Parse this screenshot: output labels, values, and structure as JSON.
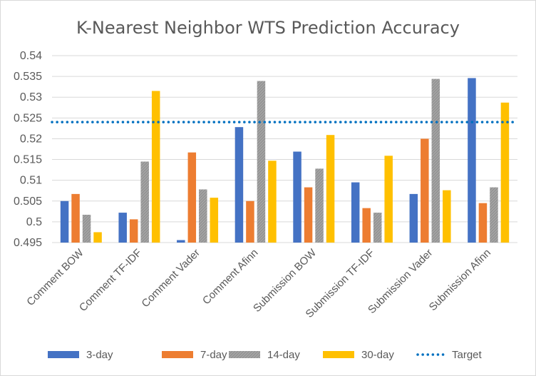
{
  "chart_data": {
    "type": "bar",
    "title": "K-Nearest Neighbor WTS Prediction Accuracy",
    "categories": [
      "Comment BOW",
      "Comment TF-IDF",
      "Comment Vader",
      "Comment Afinn",
      "Submission BOW",
      "Submission TF-IDF",
      "Submission Vader",
      "Submission Afinn"
    ],
    "series": [
      {
        "name": "3-day",
        "color": "#4472C4",
        "pattern": "solid",
        "values": [
          0.505,
          0.5022,
          0.4956,
          0.5228,
          0.5169,
          0.5095,
          0.5067,
          0.5346
        ]
      },
      {
        "name": "7-day",
        "color": "#ED7D31",
        "pattern": "solid",
        "values": [
          0.5067,
          0.5006,
          0.5167,
          0.505,
          0.5083,
          0.5033,
          0.52,
          0.5045
        ]
      },
      {
        "name": "14-day",
        "color": "#A5A5A5",
        "pattern": "hatched",
        "values": [
          0.5017,
          0.5145,
          0.5078,
          0.5339,
          0.5128,
          0.5022,
          0.5344,
          0.5083
        ]
      },
      {
        "name": "30-day",
        "color": "#FFC000",
        "pattern": "solid",
        "values": [
          0.4975,
          0.5315,
          0.5058,
          0.5147,
          0.5209,
          0.5159,
          0.5076,
          0.5287
        ]
      }
    ],
    "target": {
      "name": "Target",
      "value": 0.524,
      "color": "#0070C0",
      "style": "dotted"
    },
    "ylim": [
      0.495,
      0.54
    ],
    "yticks": [
      "0.495",
      "0.5",
      "0.505",
      "0.51",
      "0.515",
      "0.52",
      "0.525",
      "0.53",
      "0.535",
      "0.54"
    ],
    "grid": true,
    "legend": "bottom",
    "xlabel": "",
    "ylabel": ""
  }
}
